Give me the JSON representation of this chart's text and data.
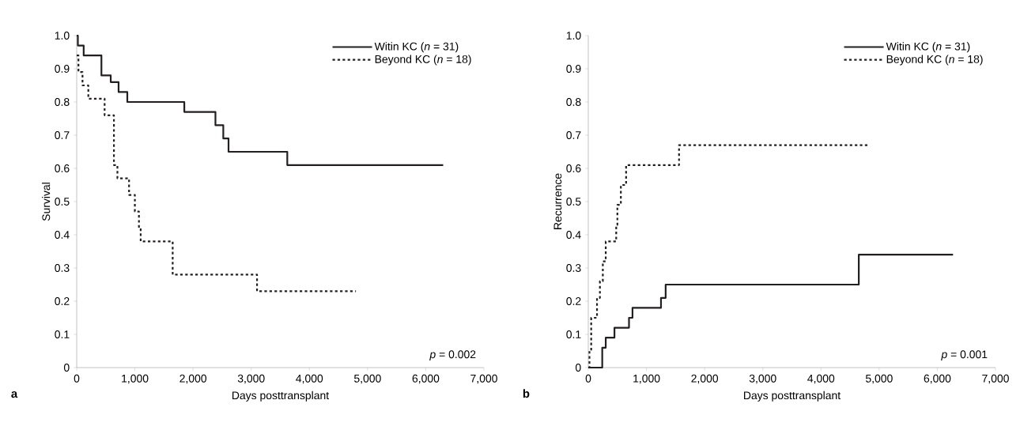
{
  "chart_data": [
    {
      "type": "step",
      "xlabel": "Days posttransplant",
      "ylabel": "Survival",
      "xlim": [
        0,
        7000
      ],
      "ylim": [
        0,
        1
      ],
      "legend": "top right",
      "xticks": [
        0,
        {
          "value": 1000,
          "label": "1,000"
        },
        {
          "value": 2000,
          "label": "2,000"
        },
        {
          "value": 3000,
          "label": "3,000"
        },
        {
          "value": 4000,
          "label": "4,000"
        },
        {
          "value": 5000,
          "label": "5,000"
        },
        {
          "value": 6000,
          "label": "6,000"
        },
        {
          "value": 7000,
          "label": "7,000"
        }
      ],
      "yticks": [
        0,
        0.1,
        0.2,
        0.3,
        0.4,
        0.5,
        0.6,
        0.7,
        0.8,
        0.9,
        {
          "value": 1,
          "label": "1.0"
        }
      ],
      "series": [
        {
          "name": "Witin KC (*n* = 31)",
          "color": "#231f20",
          "line_style": "solid",
          "x": [
            0,
            20,
            120,
            425,
            585,
            720,
            870,
            1850,
            2385,
            2520,
            2610,
            3620,
            6300
          ],
          "values": [
            1.0,
            0.97,
            0.94,
            0.88,
            0.86,
            0.83,
            0.8,
            0.77,
            0.73,
            0.69,
            0.65,
            0.61,
            0.61
          ]
        },
        {
          "name": "Beyond KC (*n* = 18)",
          "color": "#231f20",
          "line_style": "dotted",
          "x": [
            0,
            30,
            100,
            200,
            480,
            640,
            700,
            900,
            1000,
            1070,
            1100,
            1650,
            3100,
            4800
          ],
          "values": [
            0.94,
            0.89,
            0.85,
            0.81,
            0.76,
            0.61,
            0.57,
            0.52,
            0.47,
            0.42,
            0.38,
            0.28,
            0.23,
            0.23
          ]
        }
      ],
      "annotations": [
        "*p* = 0.002",
        "a"
      ]
    },
    {
      "type": "step",
      "xlabel": "Days posttransplant",
      "ylabel": "Recurrence",
      "xlim": [
        0,
        7000
      ],
      "ylim": [
        0,
        1
      ],
      "legend": "top right",
      "xticks": [
        0,
        {
          "value": 1000,
          "label": "1,000"
        },
        {
          "value": 2000,
          "label": "2,000"
        },
        {
          "value": 3000,
          "label": "3,000"
        },
        {
          "value": 4000,
          "label": "4,000"
        },
        {
          "value": 5000,
          "label": "5,000"
        },
        {
          "value": 6000,
          "label": "6,000"
        },
        {
          "value": 7000,
          "label": "7,000"
        }
      ],
      "yticks": [
        0,
        0.1,
        0.2,
        0.3,
        0.4,
        0.5,
        0.6,
        0.7,
        0.8,
        0.9,
        {
          "value": 1,
          "label": "1.0"
        }
      ],
      "series": [
        {
          "name": "Witin KC (*n* = 31)",
          "color": "#231f20",
          "line_style": "solid",
          "x": [
            0,
            240,
            300,
            450,
            700,
            760,
            1250,
            1330,
            4650,
            6270
          ],
          "values": [
            0,
            0.06,
            0.09,
            0.12,
            0.15,
            0.18,
            0.21,
            0.25,
            0.34,
            0.34
          ]
        },
        {
          "name": "Beyond KC (*n* = 18)",
          "color": "#231f20",
          "line_style": "dotted",
          "x": [
            0,
            20,
            50,
            150,
            200,
            250,
            300,
            480,
            500,
            560,
            650,
            1560,
            4830
          ],
          "values": [
            0,
            0.05,
            0.15,
            0.21,
            0.26,
            0.32,
            0.38,
            0.43,
            0.49,
            0.55,
            0.61,
            0.67,
            0.67
          ]
        }
      ],
      "annotations": [
        "*p* = 0.001",
        "b"
      ]
    }
  ]
}
